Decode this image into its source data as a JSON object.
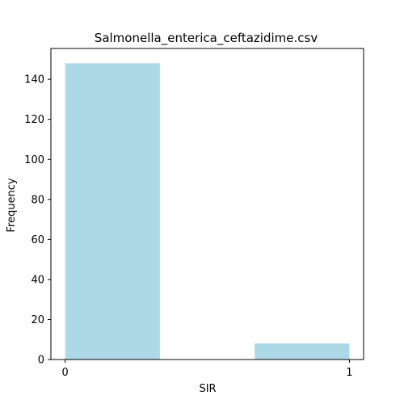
{
  "chart_data": {
    "type": "bar",
    "title": "Salmonella_enterica_ceftazidime.csv",
    "xlabel": "SIR",
    "ylabel": "Frequency",
    "bars": [
      {
        "x_start": 0.0,
        "x_end": 0.3333,
        "value": 148
      },
      {
        "x_start": 0.6667,
        "x_end": 1.0,
        "value": 8
      }
    ],
    "x_ticks": [
      0,
      1
    ],
    "y_ticks": [
      0,
      20,
      40,
      60,
      80,
      100,
      120,
      140
    ],
    "xlim": [
      -0.05,
      1.05
    ],
    "ylim": [
      0,
      155.4
    ],
    "bar_color": "#add8e6",
    "grid": false,
    "legend": "none"
  }
}
